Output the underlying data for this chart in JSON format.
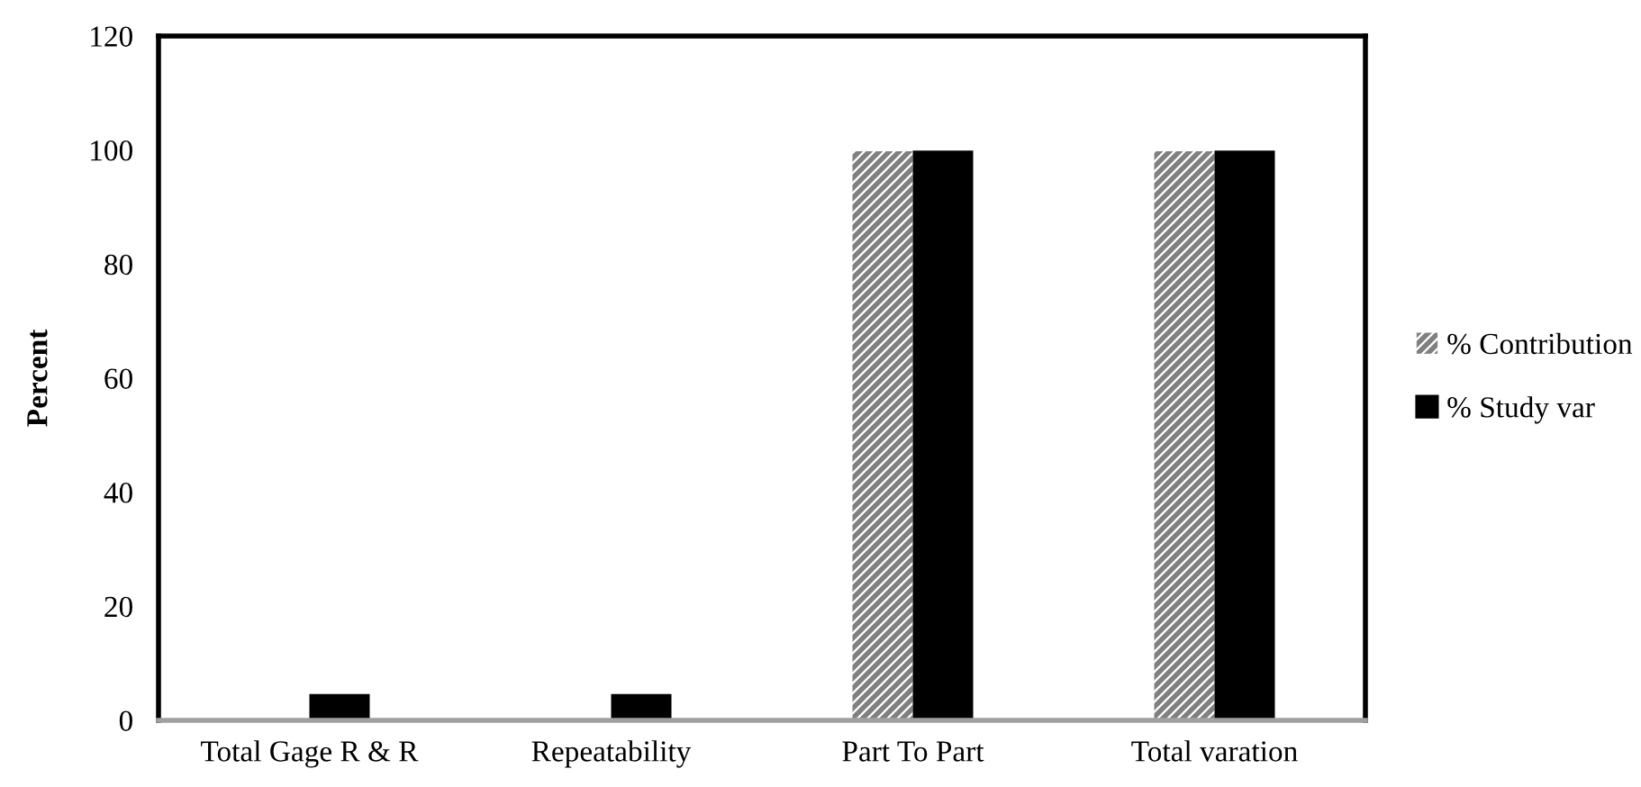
{
  "chart_data": {
    "type": "bar",
    "ylabel": "Percent",
    "categories": [
      "Total Gage R & R",
      "Repeatability",
      "Part To Part",
      "Total varation"
    ],
    "series": [
      {
        "name": "% Contribution",
        "color": "#808080",
        "values": [
          0.2,
          0.2,
          99.8,
          99.8
        ]
      },
      {
        "name": "% Study var",
        "color": "#000000",
        "values": [
          4.6,
          4.6,
          99.9,
          99.9
        ]
      }
    ],
    "ylim": [
      0,
      120
    ],
    "yticks": [
      0,
      20,
      40,
      60,
      80,
      100,
      120
    ],
    "grid": false,
    "legend": "right"
  }
}
